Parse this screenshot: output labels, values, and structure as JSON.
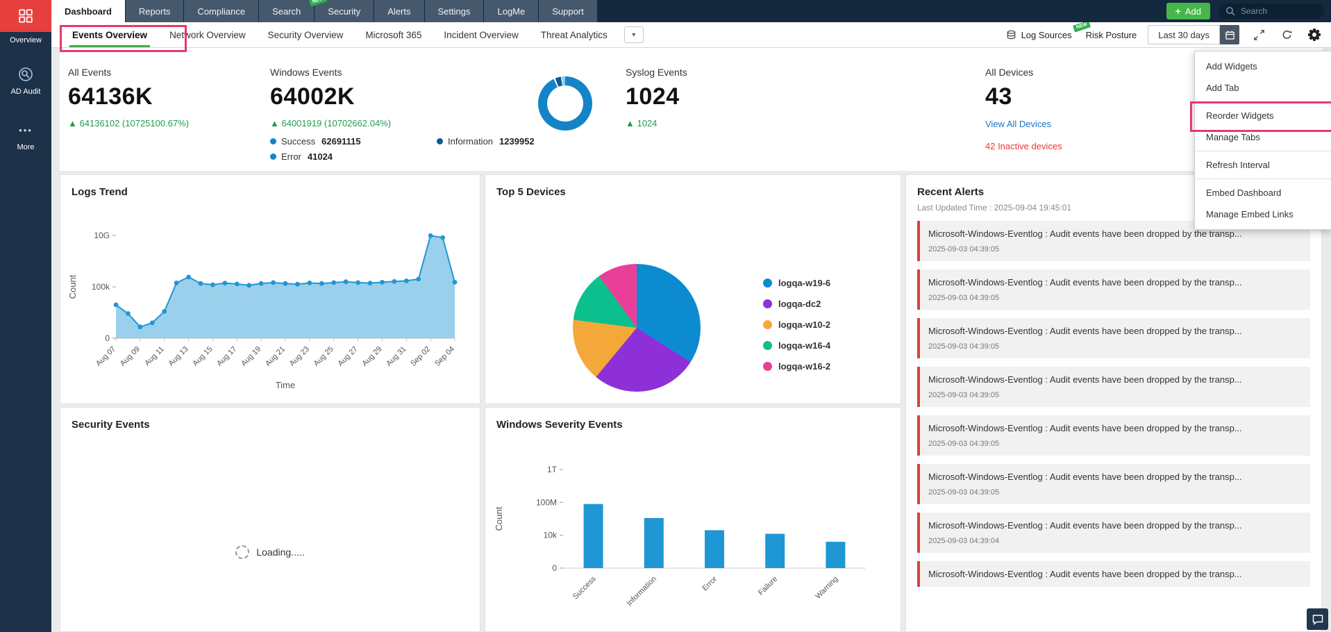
{
  "annotations": {
    "color": "#e9386b"
  },
  "colors": {
    "accent_green": "#3fae49",
    "add_button_green": "#45b649",
    "link_blue": "#1a73c8",
    "delta_green": "#1e9e4a",
    "alert_red": "#d9423a",
    "inactive_red": "#e23b35",
    "topbar_navy": "#14293e",
    "sidebar_navy": "#1d3148",
    "logo_red": "#e5403d"
  },
  "sidebar": {
    "items": [
      {
        "label": "Overview"
      },
      {
        "label": "AD Audit"
      },
      {
        "label": "More"
      }
    ],
    "more_glyph": "•••"
  },
  "topnav": {
    "tabs": [
      {
        "label": "Dashboard",
        "active": true
      },
      {
        "label": "Reports"
      },
      {
        "label": "Compliance"
      },
      {
        "label": "Search"
      },
      {
        "label": "Security",
        "badge": "NEW"
      },
      {
        "label": "Alerts"
      },
      {
        "label": "Settings"
      },
      {
        "label": "LogMe"
      },
      {
        "label": "Support"
      }
    ],
    "add_plus": "+",
    "add_label": "Add",
    "search_placeholder": "Search"
  },
  "subnav": {
    "tabs": [
      {
        "label": "Events Overview",
        "active": true
      },
      {
        "label": "Network Overview"
      },
      {
        "label": "Security Overview"
      },
      {
        "label": "Microsoft 365"
      },
      {
        "label": "Incident Overview"
      },
      {
        "label": "Threat Analytics"
      }
    ],
    "caret": "▾",
    "log_sources": "Log Sources",
    "risk_badge": "NEW",
    "risk_posture": "Risk Posture",
    "date_range": "Last 30 days"
  },
  "gear_menu": {
    "items": [
      {
        "label": "Add Widgets"
      },
      {
        "label": "Add Tab",
        "sep_after": true
      },
      {
        "label": "Reorder Widgets",
        "annotated": true
      },
      {
        "label": "Manage Tabs",
        "sep_after": true
      },
      {
        "label": "Refresh Interval",
        "sep_after": true
      },
      {
        "label": "Embed Dashboard"
      },
      {
        "label": "Manage Embed Links"
      }
    ]
  },
  "stats": {
    "all_events": {
      "title": "All Events",
      "value": "64136K",
      "delta": "▲ 64136102 (10725100.67%)"
    },
    "windows_events": {
      "title": "Windows Events",
      "value": "64002K",
      "delta": "▲ 64001919 (10702662.04%)",
      "donut_segments": [
        {
          "color": "#1583c7",
          "pct": 93
        },
        {
          "color": "#ffffff",
          "pct": 1
        },
        {
          "color": "#0b5a94",
          "pct": 3.5
        },
        {
          "color": "#ffffff",
          "pct": 0.5
        },
        {
          "color": "#8ec9ec",
          "pct": 2
        }
      ],
      "legend": [
        {
          "label": "Success",
          "value": "62691115",
          "color": "#1583c7"
        },
        {
          "label": "Information",
          "value": "1239952",
          "color": "#0b5a94"
        },
        {
          "label": "Error",
          "value": "41024",
          "color": "#1583c7"
        }
      ]
    },
    "syslog_events": {
      "title": "Syslog Events",
      "value": "1024",
      "delta": "▲ 1024"
    },
    "all_devices": {
      "title": "All Devices",
      "value": "43",
      "link": "View All Devices",
      "warning": "42 Inactive devices"
    }
  },
  "widgets": {
    "logs_trend_title": "Logs Trend",
    "top_devices_title": "Top 5 Devices",
    "recent_alerts": {
      "title": "Recent Alerts",
      "updated": "Last Updated Time : 2025-09-04 19:45:01",
      "items": [
        {
          "message": "Microsoft-Windows-Eventlog : Audit events have been dropped by the transp...",
          "time": "2025-09-03 04:39:05"
        },
        {
          "message": "Microsoft-Windows-Eventlog : Audit events have been dropped by the transp...",
          "time": "2025-09-03 04:39:05"
        },
        {
          "message": "Microsoft-Windows-Eventlog : Audit events have been dropped by the transp...",
          "time": "2025-09-03 04:39:05"
        },
        {
          "message": "Microsoft-Windows-Eventlog : Audit events have been dropped by the transp...",
          "time": "2025-09-03 04:39:05"
        },
        {
          "message": "Microsoft-Windows-Eventlog : Audit events have been dropped by the transp...",
          "time": "2025-09-03 04:39:05"
        },
        {
          "message": "Microsoft-Windows-Eventlog : Audit events have been dropped by the transp...",
          "time": "2025-09-03 04:39:05"
        },
        {
          "message": "Microsoft-Windows-Eventlog : Audit events have been dropped by the transp...",
          "time": "2025-09-03 04:39:04"
        },
        {
          "message": "Microsoft-Windows-Eventlog : Audit events have been dropped by the transp..."
        }
      ]
    },
    "security_events": {
      "title": "Security Events",
      "loading": "Loading....."
    },
    "severity_title": "Windows Severity Events"
  },
  "chart_data": [
    {
      "id": "logs_trend",
      "type": "area",
      "title": "Logs Trend",
      "xlabel": "Time",
      "ylabel": "Count",
      "y_scale": "log (0, 100k, 10G ticks)",
      "y_ticks": [
        {
          "label": "0",
          "value": 0
        },
        {
          "label": "100k",
          "value": 100000
        },
        {
          "label": "10G",
          "value": 10000000000
        }
      ],
      "x": [
        "Aug 07",
        "Aug 08",
        "Aug 09",
        "Aug 10",
        "Aug 11",
        "Aug 12",
        "Aug 13",
        "Aug 14",
        "Aug 15",
        "Aug 16",
        "Aug 17",
        "Aug 18",
        "Aug 19",
        "Aug 20",
        "Aug 21",
        "Aug 22",
        "Aug 23",
        "Aug 24",
        "Aug 25",
        "Aug 26",
        "Aug 27",
        "Aug 28",
        "Aug 29",
        "Aug 30",
        "Aug 31",
        "Sep 01",
        "Sep 02",
        "Sep 03",
        "Sep 04"
      ],
      "values": [
        65000,
        48000,
        22000,
        30000,
        52000,
        240000,
        900000,
        210000,
        160000,
        230000,
        190000,
        140000,
        210000,
        260000,
        210000,
        180000,
        240000,
        210000,
        260000,
        310000,
        260000,
        230000,
        280000,
        330000,
        380000,
        560000,
        9500000000,
        6200000000,
        280000
      ],
      "color": "#1f97d4",
      "fill": "rgba(31,151,212,0.45)"
    },
    {
      "id": "top5_devices",
      "type": "pie",
      "title": "Top 5 Devices",
      "labels": [
        "logqa-w19-6",
        "logqa-dc2",
        "logqa-w10-2",
        "logqa-w16-4",
        "logqa-w16-2"
      ],
      "values_pct": [
        34,
        27,
        16,
        13,
        10
      ],
      "colors": [
        "#0d8bd1",
        "#8e30d8",
        "#f5a83a",
        "#0cc08e",
        "#ea3f98"
      ],
      "legend_position": "right"
    },
    {
      "id": "windows_severity",
      "type": "bar",
      "title": "Windows Severity Events",
      "xlabel": "",
      "ylabel": "Count",
      "y_scale": "log (0, 10k, 100M, 1T ticks)",
      "y_ticks": [
        {
          "label": "0",
          "value": 0
        },
        {
          "label": "10k",
          "value": 10000
        },
        {
          "label": "100M",
          "value": 100000000
        },
        {
          "label": "1T",
          "value": 1000000000000
        }
      ],
      "categories": [
        "Success",
        "Information",
        "Error",
        "Failure",
        "Warning"
      ],
      "values": [
        62691115,
        1239952,
        41024,
        15000,
        8000
      ],
      "color": "#1f97d4"
    }
  ]
}
